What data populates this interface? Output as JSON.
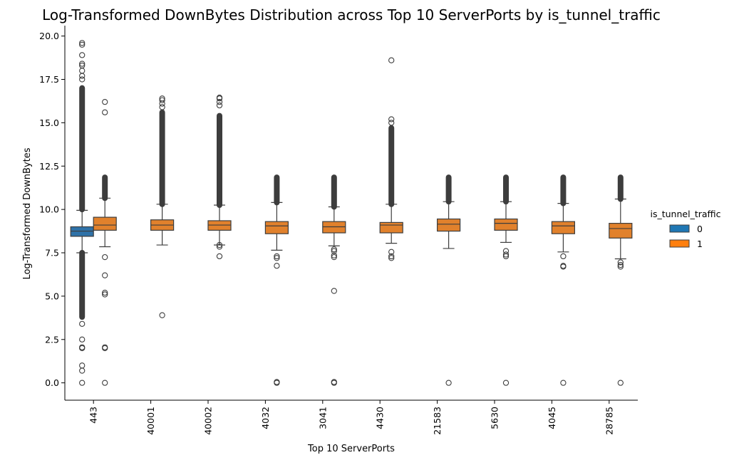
{
  "chart_data": {
    "type": "boxplot",
    "title": "Log-Transformed DownBytes Distribution across Top 10 ServerPorts by is_tunnel_traffic",
    "xlabel": "Top 10 ServerPorts",
    "ylabel": "Log-Transformed DownBytes",
    "ylim": [
      -1.0,
      20.6
    ],
    "yticks": [
      0.0,
      2.5,
      5.0,
      7.5,
      10.0,
      12.5,
      15.0,
      17.5,
      20.0
    ],
    "ytick_labels": [
      "0.0",
      "2.5",
      "5.0",
      "7.5",
      "10.0",
      "12.5",
      "15.0",
      "17.5",
      "20.0"
    ],
    "categories": [
      "443",
      "40001",
      "40002",
      "4032",
      "3041",
      "4430",
      "21583",
      "5630",
      "4045",
      "28785"
    ],
    "legend": {
      "title": "is_tunnel_traffic",
      "placement": "right",
      "entries": [
        {
          "label": "0",
          "color": "#1f77b4"
        },
        {
          "label": "1",
          "color": "#ff7f0e"
        }
      ]
    },
    "series": [
      {
        "name": "0",
        "color": "#2f72a8",
        "boxes": [
          {
            "category": "443",
            "whislo": 7.5,
            "q1": 8.45,
            "med": 8.75,
            "q3": 9.0,
            "whishi": 9.95,
            "fliers": [
              0.0,
              0.7,
              1.0,
              2.0,
              2.05,
              2.5,
              3.4,
              19.5,
              19.6,
              18.9,
              18.4,
              18.3,
              18.0,
              17.7,
              17.5
            ],
            "flier_bands": [
              [
                3.8,
                7.5
              ],
              [
                10.0,
                17.0
              ]
            ]
          }
        ]
      },
      {
        "name": "1",
        "color": "#e1812c",
        "boxes": [
          {
            "category": "443",
            "whislo": 7.85,
            "q1": 8.8,
            "med": 9.1,
            "q3": 9.55,
            "whishi": 10.65,
            "fliers": [
              0.0,
              2.0,
              2.05,
              5.1,
              5.2,
              6.2,
              7.25,
              15.6,
              16.2
            ],
            "flier_bands": [
              [
                10.65,
                11.85
              ]
            ]
          },
          {
            "category": "40001",
            "whislo": 7.95,
            "q1": 8.8,
            "med": 9.1,
            "q3": 9.4,
            "whishi": 10.3,
            "fliers": [
              3.9,
              15.9,
              16.1,
              16.3,
              16.4
            ],
            "flier_bands": [
              [
                10.3,
                15.6
              ]
            ]
          },
          {
            "category": "40002",
            "whislo": 7.95,
            "q1": 8.8,
            "med": 9.1,
            "q3": 9.35,
            "whishi": 10.25,
            "fliers": [
              7.3,
              7.85,
              7.95,
              16.0,
              16.2,
              16.4,
              16.45
            ],
            "flier_bands": [
              [
                10.25,
                15.4
              ]
            ]
          },
          {
            "category": "4032",
            "whislo": 7.65,
            "q1": 8.6,
            "med": 9.05,
            "q3": 9.3,
            "whishi": 10.4,
            "fliers": [
              0.0,
              0.05,
              6.75,
              7.2,
              7.3
            ],
            "flier_bands": [
              [
                10.4,
                11.85
              ]
            ]
          },
          {
            "category": "3041",
            "whislo": 7.9,
            "q1": 8.65,
            "med": 9.0,
            "q3": 9.3,
            "whishi": 10.15,
            "fliers": [
              0.0,
              0.05,
              5.3,
              7.25,
              7.35,
              7.6,
              7.7
            ],
            "flier_bands": [
              [
                10.15,
                11.85
              ]
            ]
          },
          {
            "category": "4430",
            "whislo": 8.05,
            "q1": 8.65,
            "med": 9.1,
            "q3": 9.25,
            "whishi": 10.3,
            "fliers": [
              7.2,
              7.3,
              7.55,
              15.0,
              15.2,
              18.6
            ],
            "flier_bands": [
              [
                10.3,
                14.7
              ]
            ]
          },
          {
            "category": "21583",
            "whislo": 7.75,
            "q1": 8.75,
            "med": 9.15,
            "q3": 9.45,
            "whishi": 10.45,
            "fliers": [
              0.0
            ],
            "flier_bands": [
              [
                10.45,
                11.85
              ]
            ]
          },
          {
            "category": "5630",
            "whislo": 8.1,
            "q1": 8.8,
            "med": 9.2,
            "q3": 9.45,
            "whishi": 10.45,
            "fliers": [
              0.0,
              7.3,
              7.4,
              7.6
            ],
            "flier_bands": [
              [
                10.45,
                11.85
              ]
            ]
          },
          {
            "category": "4045",
            "whislo": 7.55,
            "q1": 8.6,
            "med": 9.05,
            "q3": 9.3,
            "whishi": 10.35,
            "fliers": [
              0.0,
              6.7,
              6.75,
              7.3
            ],
            "flier_bands": [
              [
                10.35,
                11.85
              ]
            ]
          },
          {
            "category": "28785",
            "whislo": 7.15,
            "q1": 8.35,
            "med": 8.9,
            "q3": 9.2,
            "whishi": 10.6,
            "fliers": [
              0.0,
              6.7,
              6.8,
              6.95
            ],
            "flier_bands": [
              [
                10.6,
                11.85
              ]
            ]
          }
        ]
      }
    ]
  }
}
